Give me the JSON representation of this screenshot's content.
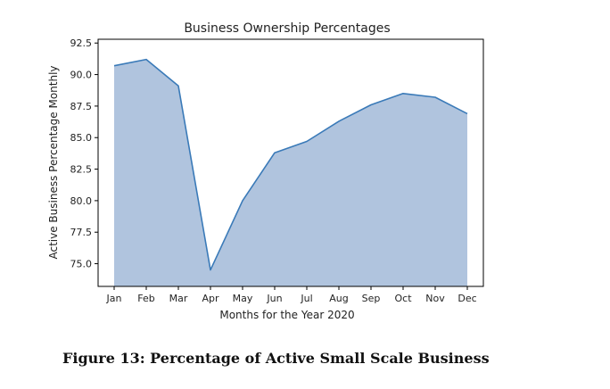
{
  "caption": "Figure 13: Percentage of Active Small Scale Business",
  "chart_data": {
    "type": "area",
    "title": "Business Ownership Percentages",
    "xlabel": "Months for the Year 2020",
    "ylabel": "Active Business Percentage Monthly",
    "categories": [
      "Jan",
      "Feb",
      "Mar",
      "Apr",
      "May",
      "Jun",
      "Jul",
      "Aug",
      "Sep",
      "Oct",
      "Nov",
      "Dec"
    ],
    "values": [
      90.7,
      91.2,
      89.1,
      74.5,
      80.0,
      83.8,
      84.7,
      86.3,
      87.6,
      88.5,
      88.2,
      86.9
    ],
    "ylim": [
      73.2,
      92.8
    ],
    "yticks": [
      75.0,
      77.5,
      80.0,
      82.5,
      85.0,
      87.5,
      90.0,
      92.5
    ],
    "ytick_labels": [
      "75.0",
      "77.5",
      "80.0",
      "82.5",
      "85.0",
      "87.5",
      "90.0",
      "92.5"
    ],
    "grid": false,
    "colors": {
      "fill": "#b0c4de",
      "line": "#3a7ab8",
      "axis": "#000000"
    }
  }
}
